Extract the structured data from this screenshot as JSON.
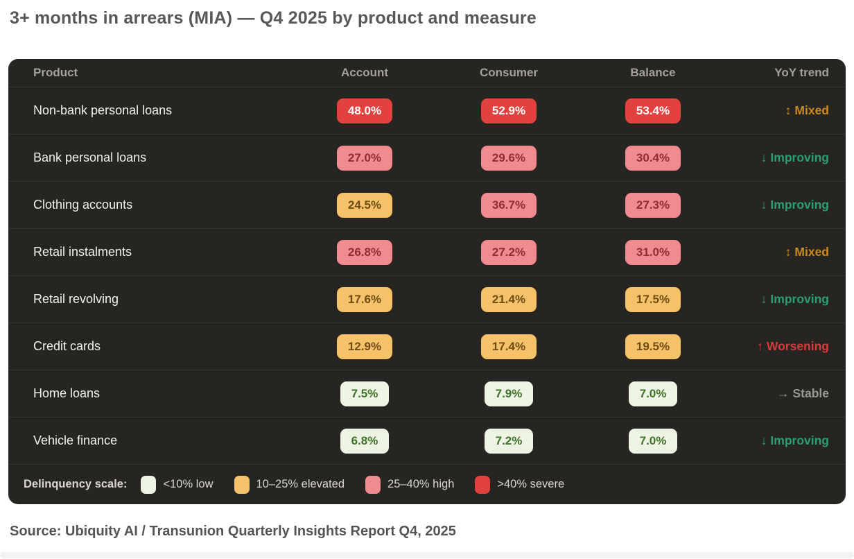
{
  "page_title": "3+ months in arrears (MIA) — Q4 2025 by product and measure",
  "source_line": "Source: Ubiquity AI / Transunion Quarterly Insights Report Q4, 2025",
  "chart_data": {
    "type": "table",
    "title": "3+ months in arrears (MIA) — Q4 2025 by product and measure",
    "columns": [
      "Product",
      "Account",
      "Consumer",
      "Balance",
      "YoY trend"
    ],
    "rows": [
      {
        "product": "Non-bank personal loans",
        "values": [
          "48.0%",
          "52.9%",
          "53.4%"
        ],
        "severity": [
          "severe",
          "severe",
          "severe"
        ],
        "trend": {
          "arrow": "↕",
          "label": "Mixed",
          "type": "mixed"
        }
      },
      {
        "product": "Bank personal loans",
        "values": [
          "27.0%",
          "29.6%",
          "30.4%"
        ],
        "severity": [
          "high",
          "high",
          "high"
        ],
        "trend": {
          "arrow": "↓",
          "label": "Improving",
          "type": "improving"
        }
      },
      {
        "product": "Clothing accounts",
        "values": [
          "24.5%",
          "36.7%",
          "27.3%"
        ],
        "severity": [
          "elevated",
          "high",
          "high"
        ],
        "trend": {
          "arrow": "↓",
          "label": "Improving",
          "type": "improving"
        }
      },
      {
        "product": "Retail instalments",
        "values": [
          "26.8%",
          "27.2%",
          "31.0%"
        ],
        "severity": [
          "high",
          "high",
          "high"
        ],
        "trend": {
          "arrow": "↕",
          "label": "Mixed",
          "type": "mixed"
        }
      },
      {
        "product": "Retail revolving",
        "values": [
          "17.6%",
          "21.4%",
          "17.5%"
        ],
        "severity": [
          "elevated",
          "elevated",
          "elevated"
        ],
        "trend": {
          "arrow": "↓",
          "label": "Improving",
          "type": "improving"
        }
      },
      {
        "product": "Credit cards",
        "values": [
          "12.9%",
          "17.4%",
          "19.5%"
        ],
        "severity": [
          "elevated",
          "elevated",
          "elevated"
        ],
        "trend": {
          "arrow": "↑",
          "label": "Worsening",
          "type": "worsening"
        }
      },
      {
        "product": "Home loans",
        "values": [
          "7.5%",
          "7.9%",
          "7.0%"
        ],
        "severity": [
          "low",
          "low",
          "low"
        ],
        "trend": {
          "arrow": "→",
          "label": "Stable",
          "type": "stable"
        }
      },
      {
        "product": "Vehicle finance",
        "values": [
          "6.8%",
          "7.2%",
          "7.0%"
        ],
        "severity": [
          "low",
          "low",
          "low"
        ],
        "trend": {
          "arrow": "↓",
          "label": "Improving",
          "type": "improving"
        }
      }
    ],
    "legend": {
      "label": "Delinquency scale:",
      "items": [
        {
          "label": "<10% low",
          "level": "low",
          "color": "#edf4e4"
        },
        {
          "label": "10–25% elevated",
          "level": "elevated",
          "color": "#f5c269"
        },
        {
          "label": "25–40% high",
          "level": "high",
          "color": "#f08b90"
        },
        {
          "label": ">40% severe",
          "level": "severe",
          "color": "#e2423f"
        }
      ]
    },
    "layout": {
      "legend_position": "bottom",
      "grid": false
    }
  },
  "colors": {
    "card_background": "#262522",
    "row_divider": "#373631",
    "header_text": "#a3a19a",
    "row_text": "#f3f1eb",
    "severe_badge_bg": "#e2423f",
    "severe_badge_text": "#ffffff",
    "high_badge_bg": "#f08b90",
    "high_badge_text": "#8e2d35",
    "elevated_badge_bg": "#f5c269",
    "elevated_badge_text": "#6f4c15",
    "low_badge_bg": "#edf4e4",
    "low_badge_text": "#3f7229",
    "trend_mixed": "#cc8a22",
    "trend_improving": "#2d9e74",
    "trend_worsening": "#d63c3c",
    "trend_stable": "#999792",
    "title_text": "#58585a",
    "source_text": "#545456"
  }
}
